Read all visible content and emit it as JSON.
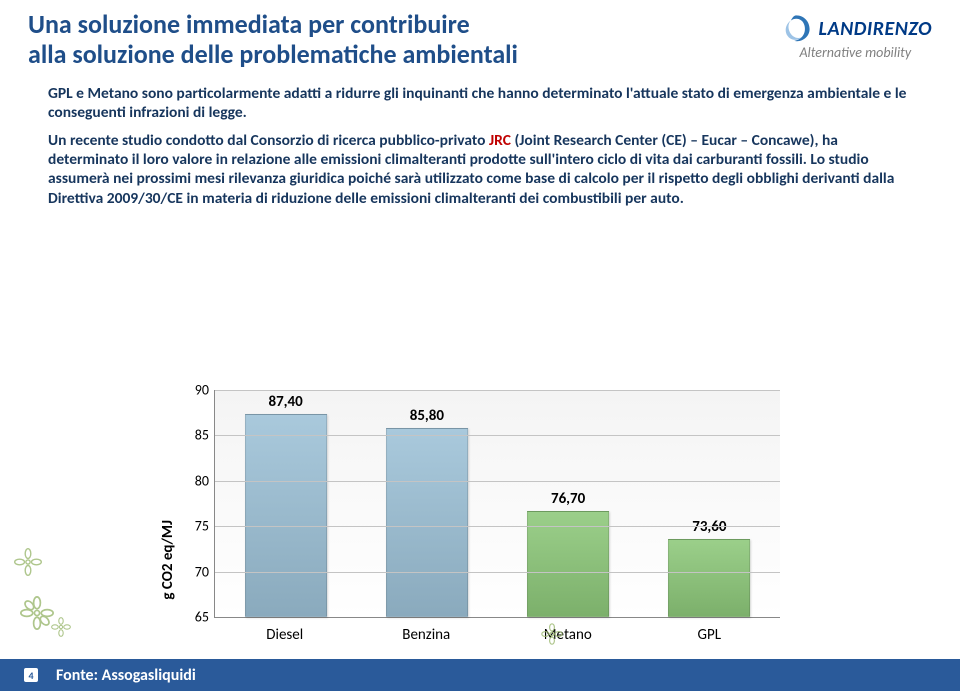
{
  "title": {
    "line1": "Una soluzione immediata per contribuire",
    "line2": "alla soluzione delle problematiche ambientali",
    "color": "#1f4e89",
    "fontsize": 26
  },
  "logo": {
    "name": "LANDIRENZO",
    "subtitle": "Alternative mobility",
    "name_color": "#003a86",
    "subtitle_color": "#808080",
    "name_fontsize": 20,
    "subtitle_fontsize": 14,
    "swirl_primary": "#2e75b6",
    "swirl_secondary": "#9dc3e6"
  },
  "paragraph1": "GPL e Metano sono particolarmente adatti a ridurre gli inquinanti che hanno determinato l'attuale stato di emergenza ambientale e le conseguenti infrazioni di legge.",
  "paragraph2_pre": "Un recente studio condotto dal Consorzio di ricerca pubblico-privato ",
  "paragraph2_jrc": "JRC",
  "paragraph2_post": " (Joint Research Center (CE) – Eucar – Concawe), ha determinato il loro valore in relazione alle emissioni climalteranti prodotte sull'intero ciclo di vita dai carburanti fossili. Lo studio assumerà nei prossimi mesi rilevanza giuridica poiché sarà utilizzato come base di calcolo per il rispetto degli obblighi derivanti dalla Direttiva 2009/30/CE in materia di riduzione delle emissioni climalteranti dei combustibili per auto.",
  "body_fontsize": 15.5,
  "body_color": "#17365d",
  "jrc_color": "#c00000",
  "chart": {
    "type": "bar",
    "ylabel": "g CO2 eq/MJ",
    "categories": [
      "Diesel",
      "Benzina",
      "Metano",
      "GPL"
    ],
    "values": [
      87.4,
      85.8,
      76.7,
      73.6
    ],
    "value_labels": [
      "87,40",
      "85,80",
      "76,70",
      "73,60"
    ],
    "bar_colors": [
      "#a9c9dc",
      "#a9c9dc",
      "#9bcf8a",
      "#9bcf8a"
    ],
    "ylim": [
      65,
      90
    ],
    "yticks": [
      65,
      70,
      75,
      80,
      85,
      90
    ],
    "grid_color": "#c4c4c4",
    "axis_color": "#888888",
    "plot_bg_top": "#f4f4f4",
    "plot_bg_bottom": "#ffffff",
    "bar_width_pct": 58,
    "label_fontsize": 15,
    "tick_fontsize": 14
  },
  "footer": {
    "slide_number": "4",
    "source_label": "Fonte: Assogasliquidi",
    "bg_color": "#2a5a9a",
    "text_color": "#ffffff",
    "fontsize": 16
  },
  "decor": {
    "flower_stroke": "#9bb870"
  }
}
